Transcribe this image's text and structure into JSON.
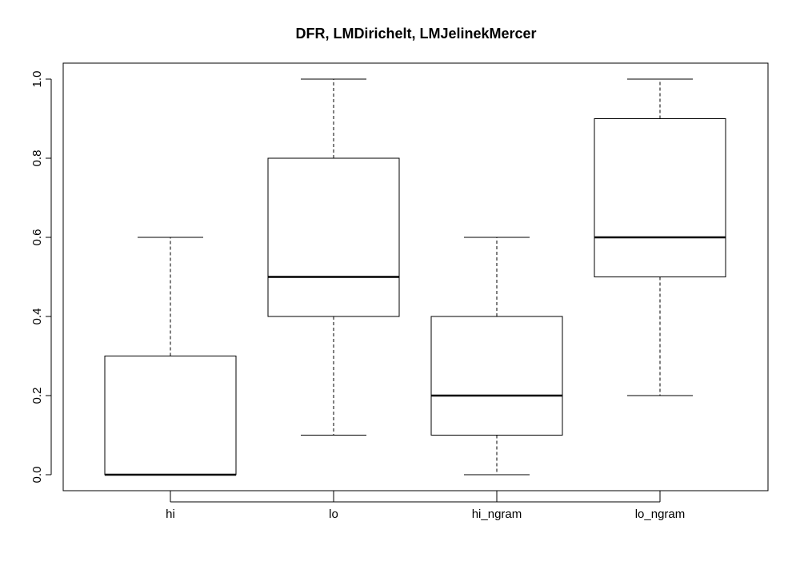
{
  "chart_data": {
    "type": "boxplot",
    "title": "DFR, LMDirichelt, LMJelinekMercer",
    "xlabel": "",
    "ylabel": "",
    "categories": [
      "hi",
      "lo",
      "hi_ngram",
      "lo_ngram"
    ],
    "boxes": [
      {
        "name": "hi",
        "whisker_low": 0.0,
        "q1": 0.0,
        "median": 0.0,
        "q3": 0.3,
        "whisker_high": 0.6
      },
      {
        "name": "lo",
        "whisker_low": 0.1,
        "q1": 0.4,
        "median": 0.5,
        "q3": 0.8,
        "whisker_high": 1.0
      },
      {
        "name": "hi_ngram",
        "whisker_low": 0.0,
        "q1": 0.1,
        "median": 0.2,
        "q3": 0.4,
        "whisker_high": 0.6
      },
      {
        "name": "lo_ngram",
        "whisker_low": 0.2,
        "q1": 0.5,
        "median": 0.6,
        "q3": 0.9,
        "whisker_high": 1.0
      }
    ],
    "ylim": [
      0,
      1
    ],
    "yticks": [
      "0.0",
      "0.2",
      "0.4",
      "0.6",
      "0.8",
      "1.0"
    ],
    "grid": false,
    "colors": {
      "box_fill": "#ffffff",
      "stroke": "#000000"
    }
  }
}
